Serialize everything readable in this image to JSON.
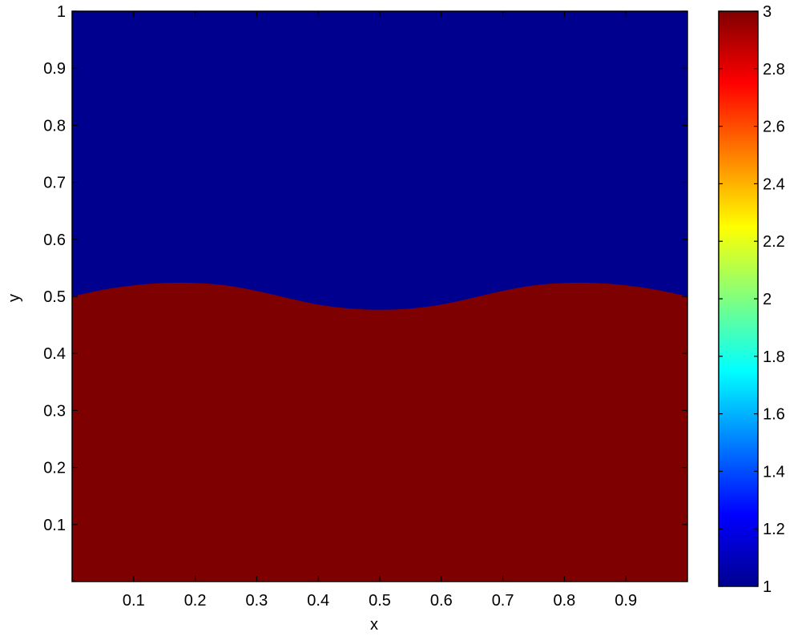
{
  "chart_data": {
    "type": "heatmap",
    "title": "",
    "xlabel": "x",
    "ylabel": "y",
    "xlim": [
      0,
      1
    ],
    "ylim": [
      0,
      1
    ],
    "x_ticks": [
      "0.1",
      "0.2",
      "0.3",
      "0.4",
      "0.5",
      "0.6",
      "0.7",
      "0.8",
      "0.9"
    ],
    "y_ticks": [
      "0.1",
      "0.2",
      "0.3",
      "0.4",
      "0.5",
      "0.6",
      "0.7",
      "0.8",
      "0.9",
      "1"
    ],
    "colorbar": {
      "colormap": "jet",
      "clim": [
        1,
        3
      ],
      "ticks": [
        "1",
        "1.2",
        "1.4",
        "1.6",
        "1.8",
        "2",
        "2.2",
        "2.4",
        "2.6",
        "2.8",
        "3"
      ]
    },
    "regions": [
      {
        "value": 1,
        "location": "above interface",
        "color": "#00008f"
      },
      {
        "value": 3,
        "location": "below interface",
        "color": "#7f0000"
      }
    ],
    "interface": {
      "x": [
        0,
        0.05,
        0.1,
        0.15,
        0.2,
        0.25,
        0.3,
        0.35,
        0.4,
        0.45,
        0.5,
        0.55,
        0.6,
        0.65,
        0.7,
        0.75,
        0.8,
        0.85,
        0.9,
        0.95,
        1
      ],
      "y": [
        0.5,
        0.512,
        0.52,
        0.524,
        0.524,
        0.52,
        0.51,
        0.497,
        0.485,
        0.478,
        0.476,
        0.478,
        0.485,
        0.497,
        0.51,
        0.52,
        0.524,
        0.524,
        0.52,
        0.512,
        0.5
      ]
    }
  }
}
